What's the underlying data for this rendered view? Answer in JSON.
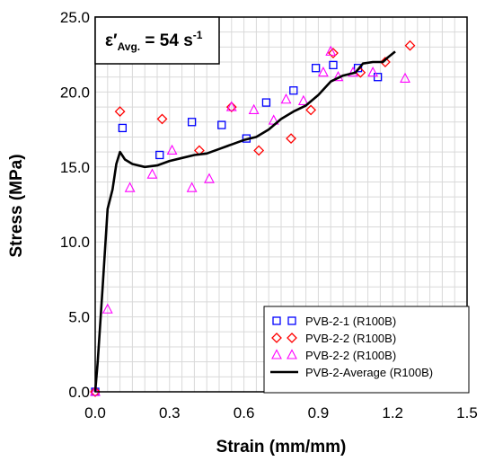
{
  "chart_data": {
    "type": "scatter",
    "xlabel": "Strain (mm/mm)",
    "ylabel": "Stress (MPa)",
    "xlim": [
      0,
      1.5
    ],
    "ylim": [
      0,
      25
    ],
    "xticks": [
      "0.0",
      "0.3",
      "0.6",
      "0.9",
      "1.2",
      "1.5"
    ],
    "yticks": [
      "0.0",
      "5.0",
      "10.0",
      "15.0",
      "20.0",
      "25.0"
    ],
    "grid": true,
    "legend_position": "bottom-right",
    "annotation": {
      "base": "ε′",
      "sub": "Avg.",
      "mid": " = 54 s",
      "sup": "-1"
    },
    "series": [
      {
        "name": "PVB-2-1 (R100B)",
        "marker": "square",
        "color": "#0000ff",
        "points": [
          [
            0.0,
            0.0
          ],
          [
            0.11,
            17.6
          ],
          [
            0.26,
            15.8
          ],
          [
            0.39,
            18.0
          ],
          [
            0.51,
            17.8
          ],
          [
            0.61,
            16.9
          ],
          [
            0.69,
            19.3
          ],
          [
            0.8,
            20.1
          ],
          [
            0.89,
            21.6
          ],
          [
            0.96,
            21.8
          ],
          [
            1.06,
            21.6
          ],
          [
            1.14,
            21.0
          ]
        ]
      },
      {
        "name": "PVB-2-2 (R100B)",
        "marker": "diamond",
        "color": "#ff0000",
        "points": [
          [
            0.0,
            0.0
          ],
          [
            0.1,
            18.7
          ],
          [
            0.27,
            18.2
          ],
          [
            0.42,
            16.1
          ],
          [
            0.55,
            19.0
          ],
          [
            0.66,
            16.1
          ],
          [
            0.79,
            16.9
          ],
          [
            0.87,
            18.8
          ],
          [
            0.96,
            22.6
          ],
          [
            1.07,
            21.3
          ],
          [
            1.17,
            22.0
          ],
          [
            1.27,
            23.1
          ]
        ]
      },
      {
        "name": "PVB-2-2 (R100B)",
        "marker": "triangle",
        "color": "#ff00ff",
        "points": [
          [
            0.0,
            0.0
          ],
          [
            0.05,
            5.5
          ],
          [
            0.14,
            13.6
          ],
          [
            0.23,
            14.5
          ],
          [
            0.31,
            16.1
          ],
          [
            0.39,
            13.6
          ],
          [
            0.46,
            14.2
          ],
          [
            0.55,
            19.0
          ],
          [
            0.64,
            18.8
          ],
          [
            0.72,
            18.1
          ],
          [
            0.77,
            19.5
          ],
          [
            0.84,
            19.4
          ],
          [
            0.92,
            21.3
          ],
          [
            0.98,
            21.0
          ],
          [
            1.04,
            21.3
          ],
          [
            1.12,
            21.3
          ],
          [
            1.25,
            20.9
          ],
          [
            0.95,
            22.7
          ]
        ]
      },
      {
        "name": "PVB-2-Average (R100B)",
        "marker": "line",
        "color": "#000000",
        "points": [
          [
            0.0,
            0.0
          ],
          [
            0.01,
            2.0
          ],
          [
            0.03,
            7.0
          ],
          [
            0.05,
            12.2
          ],
          [
            0.07,
            13.5
          ],
          [
            0.085,
            15.2
          ],
          [
            0.1,
            16.0
          ],
          [
            0.12,
            15.5
          ],
          [
            0.15,
            15.2
          ],
          [
            0.2,
            15.0
          ],
          [
            0.25,
            15.1
          ],
          [
            0.3,
            15.4
          ],
          [
            0.35,
            15.6
          ],
          [
            0.4,
            15.8
          ],
          [
            0.45,
            15.9
          ],
          [
            0.5,
            16.2
          ],
          [
            0.55,
            16.5
          ],
          [
            0.6,
            16.8
          ],
          [
            0.65,
            17.0
          ],
          [
            0.7,
            17.5
          ],
          [
            0.75,
            18.2
          ],
          [
            0.8,
            18.7
          ],
          [
            0.85,
            19.1
          ],
          [
            0.9,
            19.8
          ],
          [
            0.95,
            20.7
          ],
          [
            1.0,
            21.1
          ],
          [
            1.05,
            21.3
          ],
          [
            1.08,
            21.9
          ],
          [
            1.12,
            22.0
          ],
          [
            1.16,
            22.0
          ],
          [
            1.18,
            22.3
          ],
          [
            1.21,
            22.7
          ]
        ]
      }
    ]
  }
}
